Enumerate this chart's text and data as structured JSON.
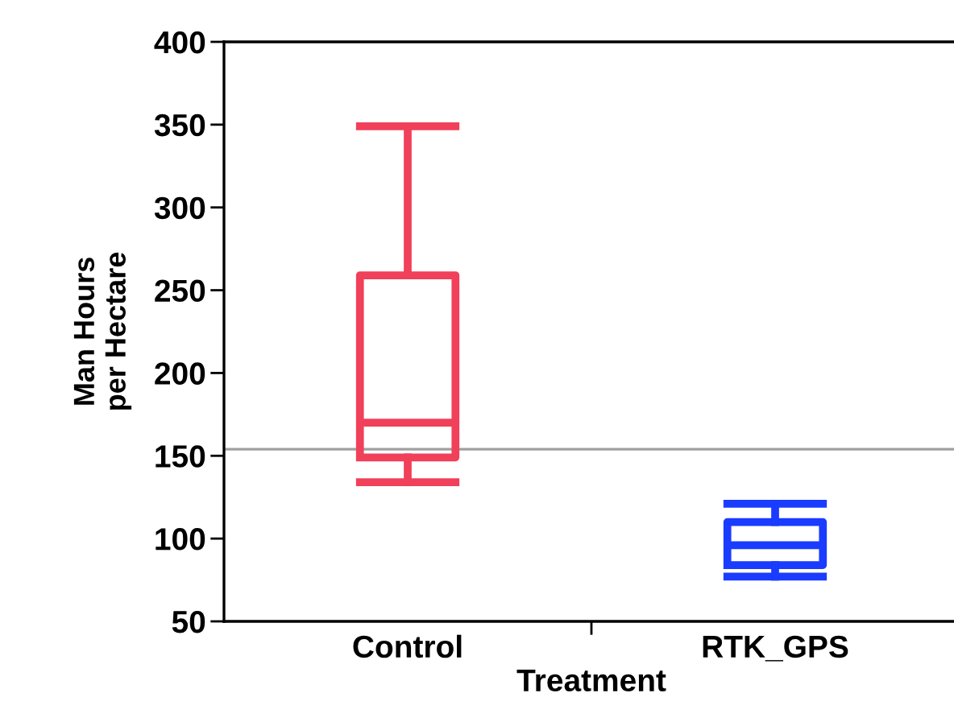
{
  "chart_data": {
    "type": "box",
    "xlabel": "Treatment",
    "ylabel": "Man Hours\nper Hectare",
    "categories": [
      "Control",
      "RTK_GPS"
    ],
    "series": [
      {
        "color": "#f0405a",
        "boxes": [
          {
            "low": 134,
            "q1": 149,
            "median": 170,
            "q3": 259,
            "high": 349
          },
          null
        ]
      },
      {
        "color": "#1a3cff",
        "boxes": [
          null,
          {
            "low": 77,
            "q1": 84,
            "median": 96,
            "q3": 110,
            "high": 121
          }
        ]
      }
    ],
    "ylim": [
      50,
      400
    ],
    "yticks": [
      50,
      100,
      150,
      200,
      250,
      300,
      350,
      400
    ],
    "grid": false,
    "ref_lines": [
      {
        "axis": "y",
        "value": 154,
        "color": "#a0a0a0"
      }
    ]
  }
}
